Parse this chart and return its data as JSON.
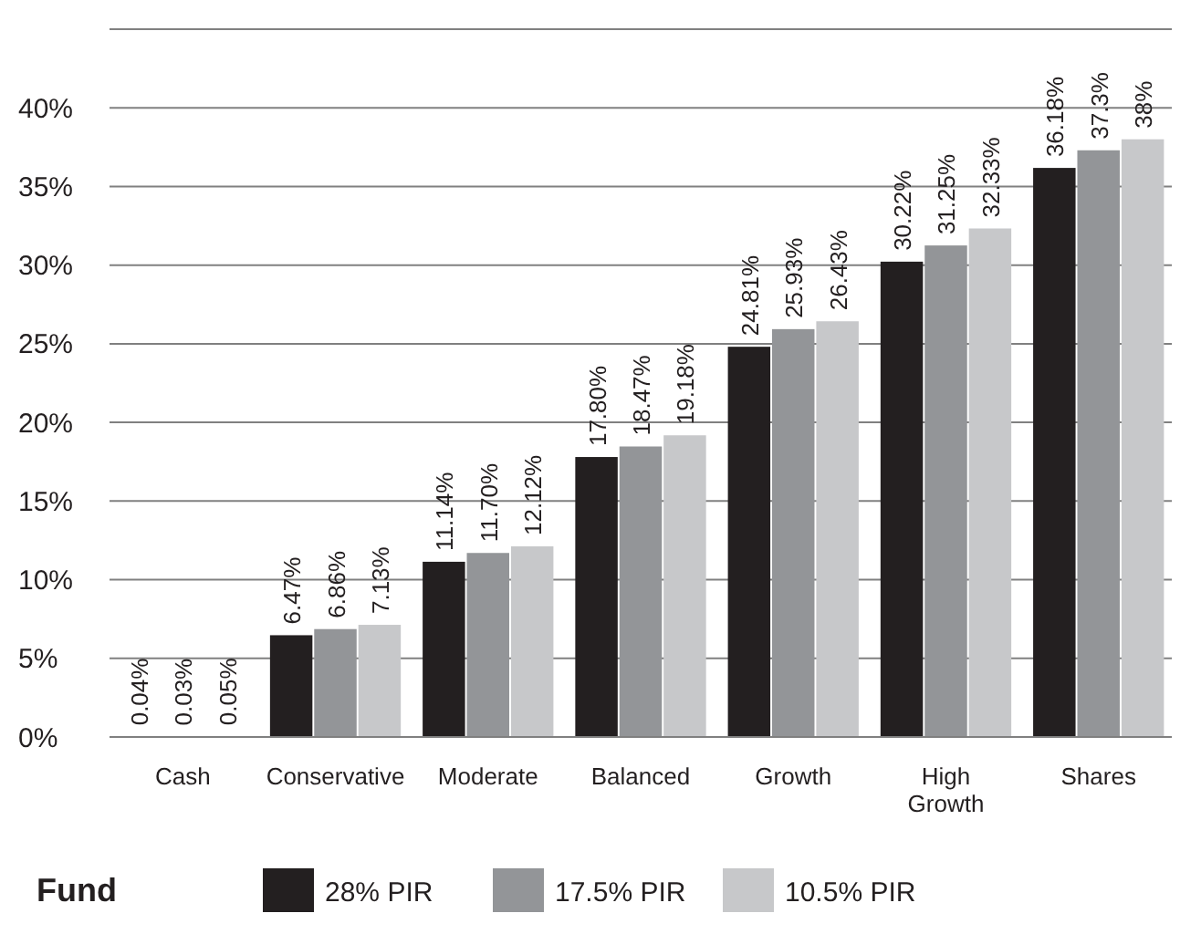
{
  "chart_data": {
    "type": "bar",
    "categories": [
      "Cash",
      "Conservative",
      "Moderate",
      "Balanced",
      "Growth",
      "High\nGrowth",
      "Shares"
    ],
    "series": [
      {
        "name": "28% PIR",
        "color": "#231f20",
        "values": [
          0.04,
          6.47,
          11.14,
          17.8,
          24.81,
          30.22,
          36.18
        ],
        "value_labels": [
          "0.04%",
          "6.47%",
          "11.14%",
          "17.80%",
          "24.81%",
          "30.22%",
          "36.18%"
        ]
      },
      {
        "name": "17.5% PIR",
        "color": "#939598",
        "values": [
          0.03,
          6.86,
          11.7,
          18.47,
          25.93,
          31.25,
          37.3
        ],
        "value_labels": [
          "0.03%",
          "6.86%",
          "11.70%",
          "18.47%",
          "25.93%",
          "31.25%",
          "37.3%"
        ]
      },
      {
        "name": "10.5% PIR",
        "color": "#c7c8ca",
        "values": [
          0.05,
          7.13,
          12.12,
          19.18,
          26.43,
          32.33,
          38
        ],
        "value_labels": [
          "0.05%",
          "7.13%",
          "12.12%",
          "19.18%",
          "26.43%",
          "32.33%",
          "38%"
        ]
      }
    ],
    "ylim": [
      0,
      45
    ],
    "yticks": [
      {
        "value": 0,
        "label": "0%"
      },
      {
        "value": 5,
        "label": "5%"
      },
      {
        "value": 10,
        "label": "10%"
      },
      {
        "value": 15,
        "label": "15%"
      },
      {
        "value": 20,
        "label": "20%"
      },
      {
        "value": 25,
        "label": "25%"
      },
      {
        "value": 30,
        "label": "30%"
      },
      {
        "value": 35,
        "label": "35%"
      },
      {
        "value": 40,
        "label": "40%"
      },
      {
        "value": 45,
        "label": null
      }
    ],
    "grid": "y",
    "legend": "bottom",
    "legend_title": "Fund"
  }
}
